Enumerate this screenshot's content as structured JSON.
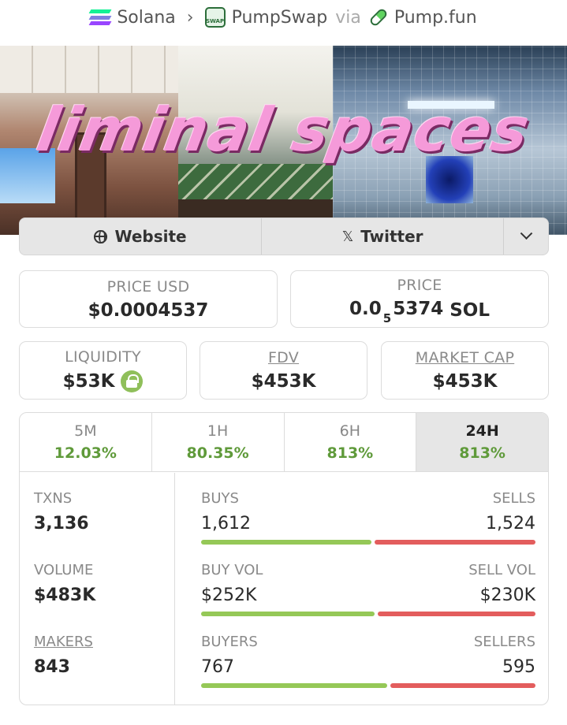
{
  "breadcrumb": {
    "chain": "Solana",
    "dex": "PumpSwap",
    "dex_badge": "SWAP",
    "via": "via",
    "launchpad": "Pump.fun"
  },
  "banner": {
    "title": "liminal spaces"
  },
  "links": {
    "website": "Website",
    "twitter": "Twitter",
    "x_glyph": "𝕏"
  },
  "price": {
    "usd_label": "PRICE USD",
    "usd_value": "$0.0004537",
    "native_label": "PRICE",
    "native_prefix": "0.0",
    "native_zeros": "5",
    "native_digits": "5374",
    "native_unit": "SOL"
  },
  "metrics": {
    "liquidity_label": "LIQUIDITY",
    "liquidity_value": "$53K",
    "fdv_label": "FDV",
    "fdv_value": "$453K",
    "mcap_label": "MARKET CAP",
    "mcap_value": "$453K"
  },
  "tabs": [
    {
      "label": "5M",
      "change": "12.03%"
    },
    {
      "label": "1H",
      "change": "80.35%"
    },
    {
      "label": "6H",
      "change": "813%"
    },
    {
      "label": "24H",
      "change": "813%",
      "active": true
    }
  ],
  "stats": {
    "txns_label": "TXNS",
    "txns_value": "3,136",
    "volume_label": "VOLUME",
    "volume_value": "$483K",
    "makers_label": "MAKERS",
    "makers_value": "843",
    "buys_label": "BUYS",
    "buys_value": "1,612",
    "sells_label": "SELLS",
    "sells_value": "1,524",
    "buys_share": 0.514,
    "buyvol_label": "BUY VOL",
    "buyvol_value": "$252K",
    "sellvol_label": "SELL VOL",
    "sellvol_value": "$230K",
    "buyvol_share": 0.523,
    "buyers_label": "BUYERS",
    "buyers_value": "767",
    "sellers_label": "SELLERS",
    "sellers_value": "595",
    "buyers_share": 0.563
  },
  "colors": {
    "positive": "#5f9a3a",
    "buy_bar": "#95c857",
    "sell_bar": "#e35d5d",
    "banner_title": "#f59ad9"
  },
  "icons": {
    "chain": "solana-icon",
    "dex": "pumpswap-icon",
    "launchpad": "pill-icon",
    "website": "globe-icon",
    "twitter": "x-icon",
    "more": "chevron-down-icon",
    "liquidity_lock": "lock-icon"
  }
}
